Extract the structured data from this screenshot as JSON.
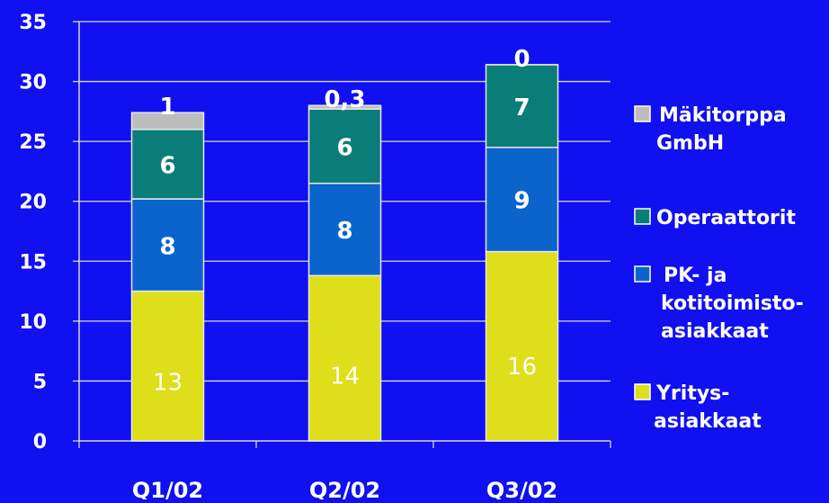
{
  "chart_data": {
    "type": "bar",
    "stacked": true,
    "categories": [
      "Q1/02",
      "Q2/02",
      "Q3/02"
    ],
    "series": [
      {
        "name": "Yritys-\nasiakkaat",
        "color": "#dede1a",
        "values": [
          12.5,
          13.8,
          15.8
        ],
        "labels": [
          "13",
          "14",
          "16"
        ]
      },
      {
        "name": "PK- ja\nkotitoimisto-\nasiakkaat",
        "color": "#0a64cc",
        "values": [
          7.7,
          7.7,
          8.7
        ],
        "labels": [
          "8",
          "8",
          "9"
        ]
      },
      {
        "name": "Operaattorit",
        "color": "#0a7d78",
        "values": [
          5.8,
          6.2,
          6.9
        ],
        "labels": [
          "6",
          "6",
          "7"
        ]
      },
      {
        "name": "Mäkitorppa\nGmbH",
        "color": "#bdbdbd",
        "values": [
          1.4,
          0.3,
          0.0
        ],
        "labels": [
          "1",
          "0,3",
          "0"
        ]
      }
    ],
    "ylim": [
      0,
      35
    ],
    "yticks": [
      0,
      5,
      10,
      15,
      20,
      25,
      30,
      35
    ],
    "grid": true,
    "legend": "right",
    "colors": {
      "background": "#1010f0",
      "axis": "#d8d8d8",
      "text": "#ffffff",
      "label_text": "#000000"
    }
  }
}
